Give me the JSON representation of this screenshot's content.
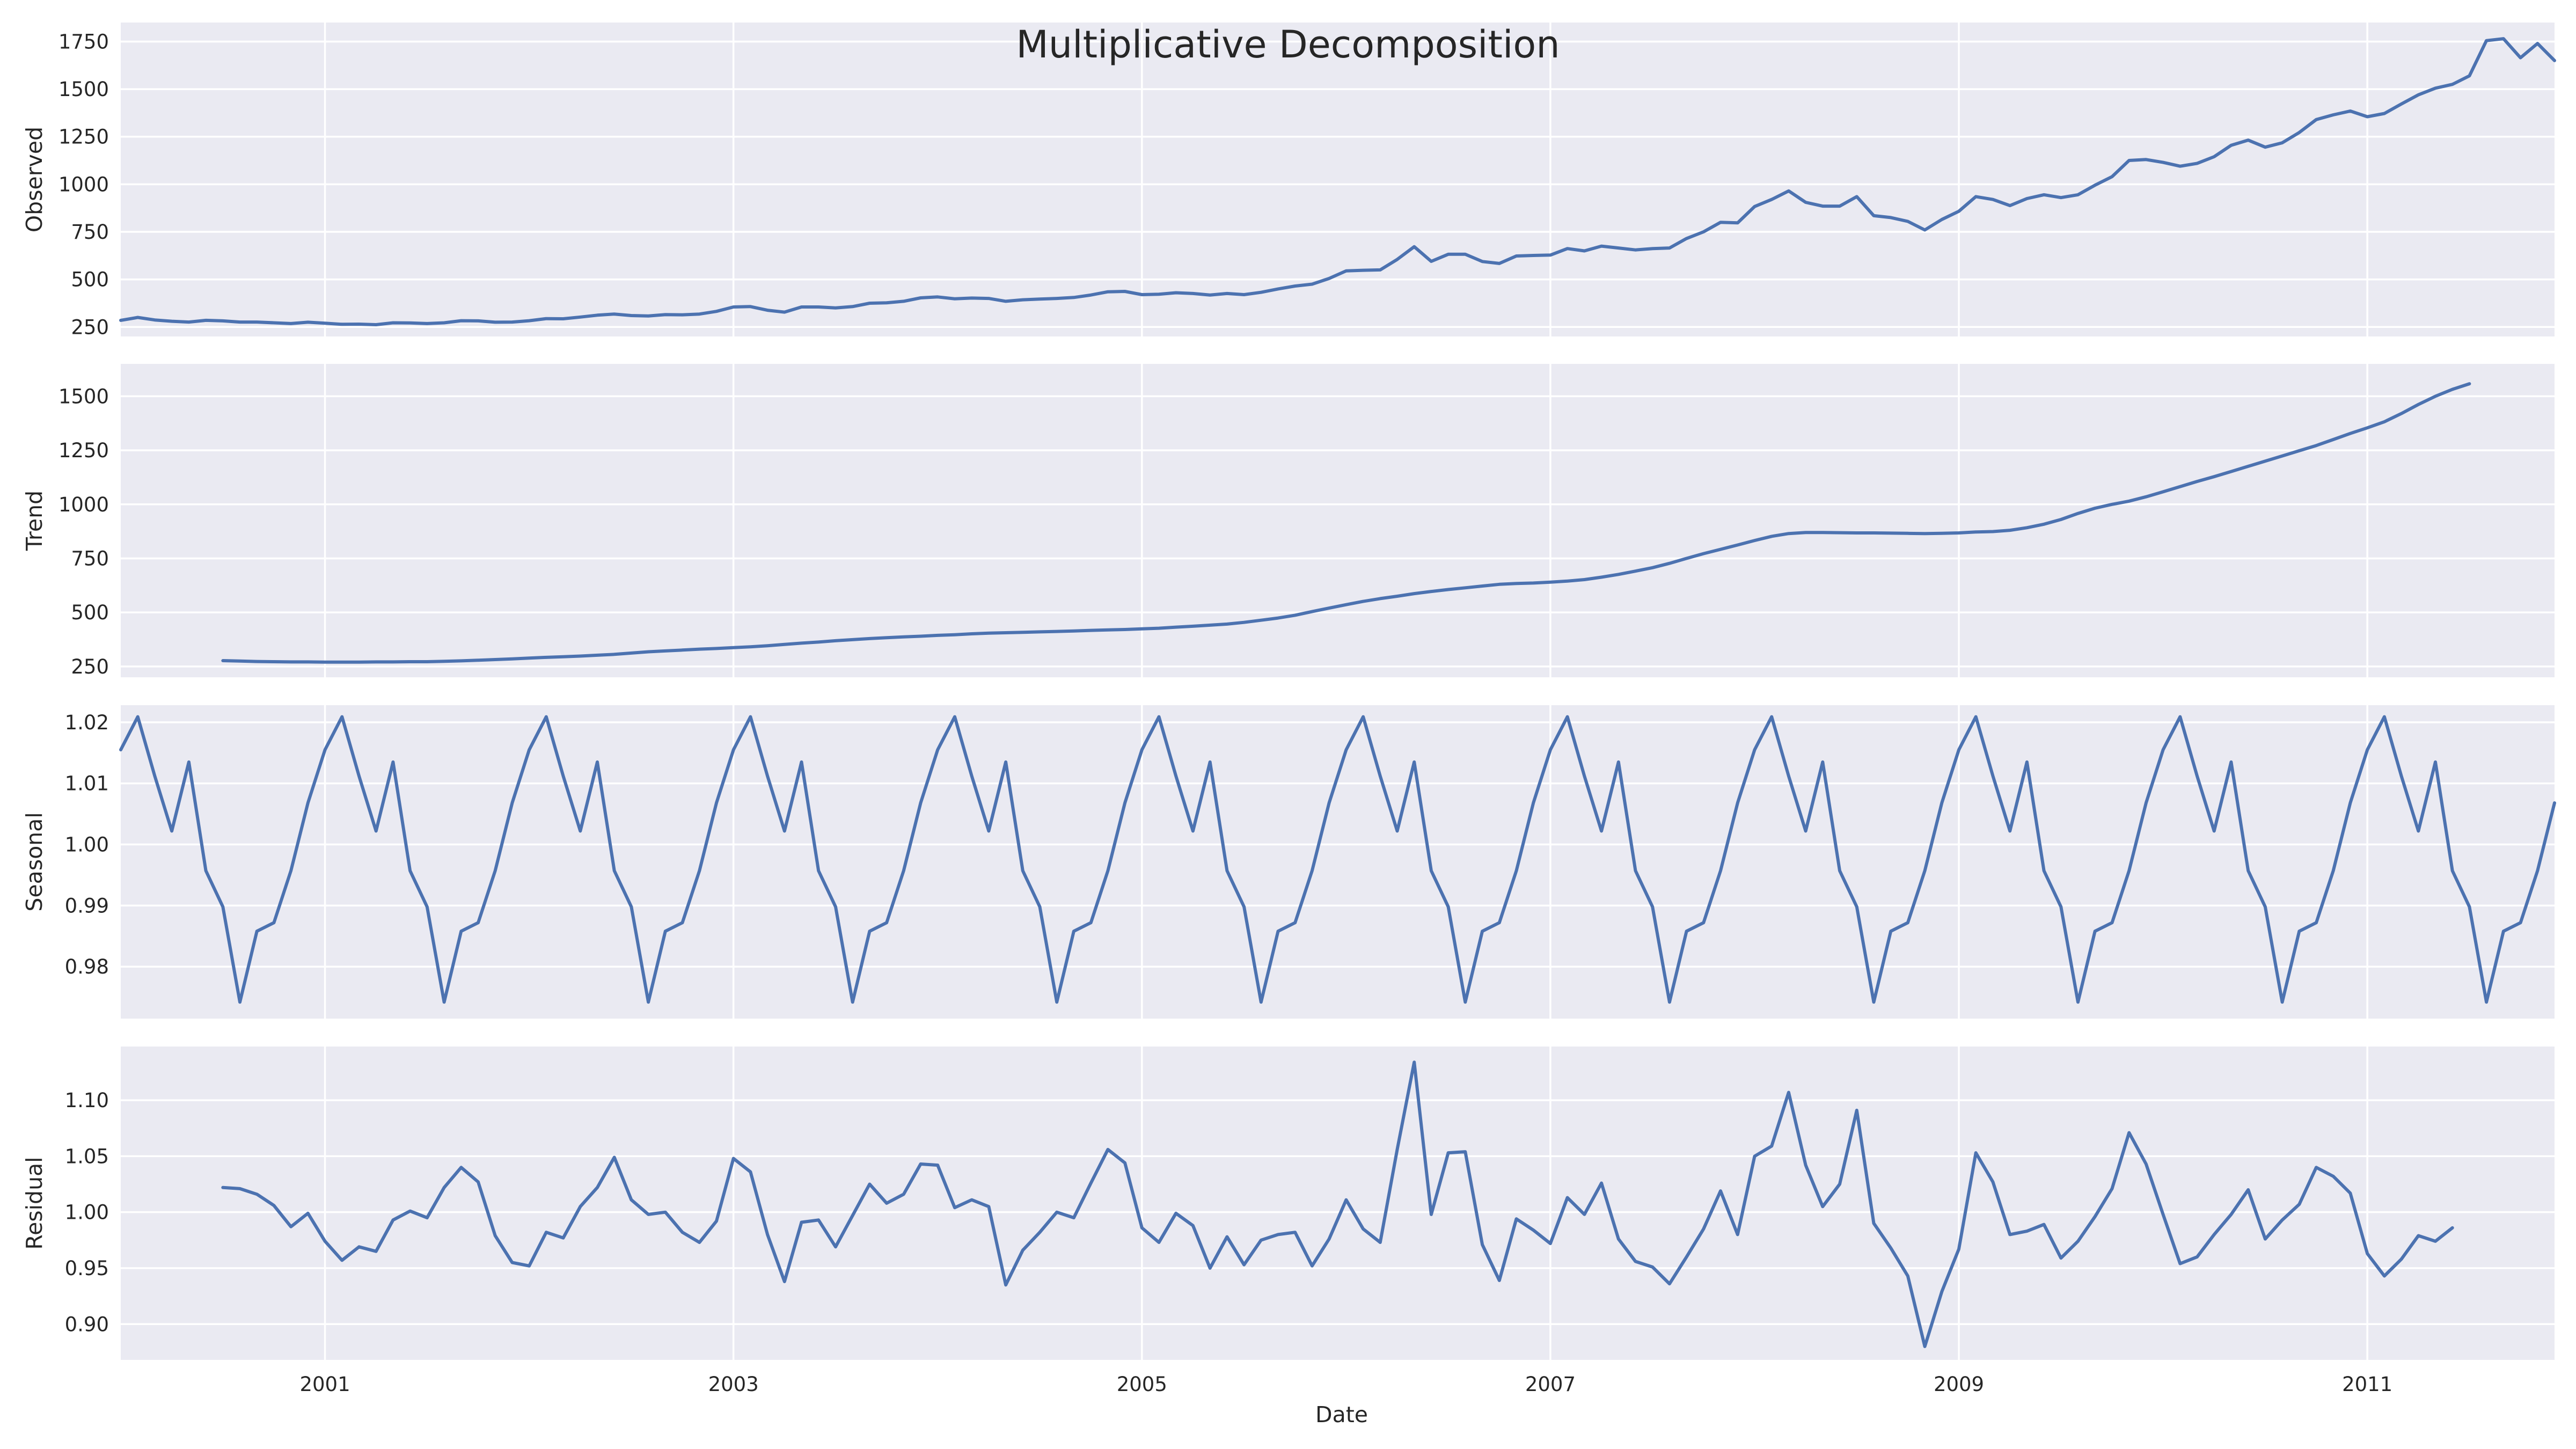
{
  "chart_data": {
    "type": "line",
    "title": "Multiplicative Decomposition",
    "xlabel": "Date",
    "x_start": "2000-01",
    "x_end": "2011-12",
    "frequency": "monthly",
    "x_ticks": [
      "2001",
      "2003",
      "2005",
      "2007",
      "2009",
      "2011"
    ],
    "grid": true,
    "panels": [
      {
        "name": "observed",
        "ylabel": "Observed",
        "ylim": [
          200,
          1850
        ],
        "yticks": [
          250,
          500,
          750,
          1000,
          1250,
          1500,
          1750
        ],
        "ytick_labels": [
          "250",
          "500",
          "750",
          "1000",
          "1250",
          "1500",
          "1750"
        ],
        "values": [
          285,
          300,
          287,
          280,
          276,
          285,
          282,
          276,
          276,
          272,
          268,
          275,
          270,
          264,
          265,
          262,
          272,
          271,
          268,
          272,
          283,
          282,
          275,
          276,
          283,
          294,
          293,
          302,
          312,
          318,
          310,
          308,
          315,
          314,
          318,
          332,
          355,
          357,
          338,
          328,
          355,
          355,
          350,
          357,
          375,
          377,
          385,
          403,
          408,
          398,
          402,
          400,
          385,
          393,
          397,
          400,
          405,
          418,
          435,
          437,
          420,
          422,
          430,
          426,
          418,
          426,
          420,
          432,
          450,
          465,
          475,
          505,
          545,
          548,
          550,
          605,
          672,
          595,
          632,
          632,
          594,
          584,
          623,
          626,
          628,
          662,
          650,
          675,
          665,
          655,
          662,
          665,
          715,
          750,
          800,
          797,
          883,
          920,
          965,
          905,
          885,
          885,
          935,
          835,
          825,
          805,
          760,
          815,
          858,
          935,
          920,
          888,
          925,
          945,
          930,
          945,
          995,
          1040,
          1125,
          1130,
          1115,
          1095,
          1110,
          1145,
          1205,
          1232,
          1195,
          1218,
          1272,
          1340,
          1365,
          1385,
          1355,
          1372,
          1422,
          1470,
          1505,
          1525,
          1570,
          1755,
          1765,
          1665,
          1740,
          1650
        ]
      },
      {
        "name": "trend",
        "ylabel": "Trend",
        "ylim": [
          200,
          1650
        ],
        "yticks": [
          250,
          500,
          750,
          1000,
          1250,
          1500
        ],
        "ytick_labels": [
          "250",
          "500",
          "750",
          "1000",
          "1250",
          "1500"
        ],
        "first_index": 6,
        "values": [
          277,
          275,
          273,
          272,
          271,
          271,
          270,
          270,
          270,
          271,
          271,
          272,
          272,
          274,
          276,
          279,
          282,
          285,
          289,
          292,
          295,
          298,
          302,
          306,
          312,
          318,
          322,
          326,
          330,
          333,
          337,
          341,
          346,
          352,
          358,
          363,
          369,
          374,
          379,
          383,
          387,
          390,
          394,
          397,
          401,
          404,
          406,
          408,
          410,
          412,
          414,
          417,
          419,
          421,
          424,
          427,
          432,
          436,
          441,
          446,
          454,
          464,
          474,
          487,
          504,
          520,
          536,
          551,
          564,
          575,
          587,
          597,
          606,
          614,
          622,
          630,
          634,
          636,
          640,
          645,
          652,
          663,
          676,
          691,
          707,
          727,
          750,
          772,
          792,
          812,
          833,
          852,
          865,
          870,
          870,
          869,
          868,
          868,
          867,
          866,
          865,
          866,
          868,
          872,
          874,
          880,
          892,
          908,
          930,
          958,
          982,
          1000,
          1015,
          1035,
          1058,
          1082,
          1106,
          1128,
          1152,
          1176,
          1200,
          1224,
          1248,
          1272,
          1300,
          1328,
          1354,
          1382,
          1420,
          1462,
          1500,
          1532,
          1558
        ]
      },
      {
        "name": "seasonal",
        "ylabel": "Seasonal",
        "ylim": [
          0.9715,
          1.0228
        ],
        "yticks": [
          0.98,
          0.99,
          1.0,
          1.01,
          1.02
        ],
        "ytick_labels": [
          "0.98",
          "0.99",
          "1.00",
          "1.01",
          "1.02"
        ],
        "pattern": [
          1.0155,
          1.0209,
          1.0112,
          1.0022,
          1.0135,
          0.9957,
          0.9898,
          0.9742,
          0.9858,
          0.9872,
          0.9957,
          1.0068
        ],
        "repeats": 12
      },
      {
        "name": "residual",
        "ylabel": "Residual",
        "ylim": [
          0.868,
          1.148
        ],
        "yticks": [
          0.9,
          0.95,
          1.0,
          1.05,
          1.1
        ],
        "ytick_labels": [
          "0.90",
          "0.95",
          "1.00",
          "1.05",
          "1.10"
        ],
        "first_index": 6,
        "values": [
          1.022,
          1.021,
          1.016,
          1.006,
          0.987,
          0.999,
          0.974,
          0.957,
          0.969,
          0.965,
          0.993,
          1.001,
          0.995,
          1.022,
          1.04,
          1.027,
          0.979,
          0.955,
          0.952,
          0.982,
          0.977,
          1.005,
          1.022,
          1.049,
          1.011,
          0.998,
          1.0,
          0.982,
          0.973,
          0.992,
          1.048,
          1.036,
          0.98,
          0.938,
          0.991,
          0.993,
          0.969,
          0.997,
          1.025,
          1.008,
          1.016,
          1.043,
          1.042,
          1.004,
          1.011,
          1.005,
          0.935,
          0.966,
          0.982,
          1.0,
          0.995,
          1.026,
          1.056,
          1.044,
          0.986,
          0.973,
          0.999,
          0.988,
          0.95,
          0.978,
          0.953,
          0.975,
          0.98,
          0.982,
          0.952,
          0.976,
          1.011,
          0.985,
          0.973,
          1.056,
          1.134,
          0.998,
          1.053,
          1.054,
          0.971,
          0.939,
          0.994,
          0.984,
          0.972,
          1.013,
          0.998,
          1.026,
          0.976,
          0.956,
          0.951,
          0.936,
          0.96,
          0.985,
          1.019,
          0.98,
          1.05,
          1.059,
          1.107,
          1.042,
          1.005,
          1.025,
          1.091,
          0.99,
          0.968,
          0.943,
          0.88,
          0.929,
          0.967,
          1.053,
          1.027,
          0.98,
          0.983,
          0.989,
          0.959,
          0.974,
          0.996,
          1.021,
          1.071,
          1.043,
          0.998,
          0.954,
          0.96,
          0.98,
          0.998,
          1.02,
          0.976,
          0.993,
          1.007,
          1.04,
          1.032,
          1.017,
          0.963,
          0.943,
          0.958,
          0.979,
          0.974,
          0.986
        ]
      }
    ]
  }
}
